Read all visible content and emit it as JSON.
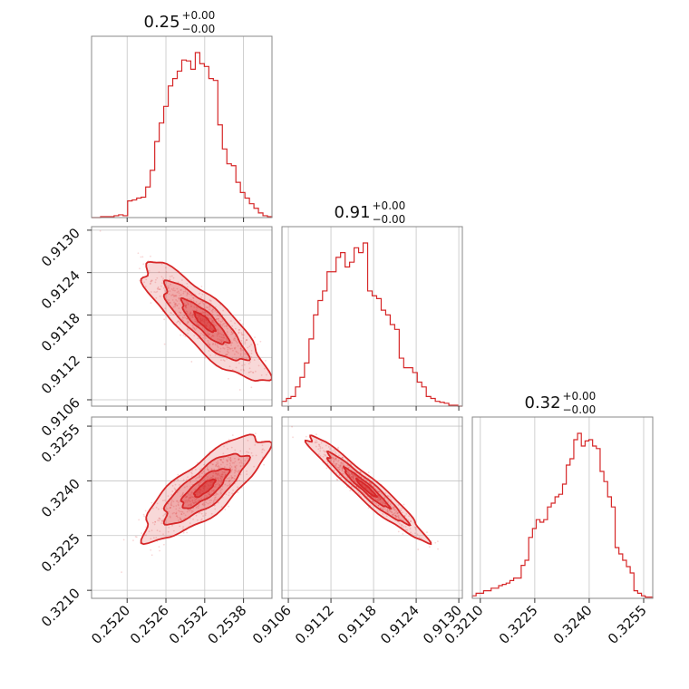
{
  "chart_data": {
    "type": "corner",
    "color": "#d62728",
    "params": [
      {
        "title_value": "0.25",
        "title_plus": "+0.00",
        "title_minus": "−0.00",
        "range": [
          0.25145,
          0.25424
        ],
        "ticks": [
          "0.2520",
          "0.2526",
          "0.2532",
          "0.2538"
        ]
      },
      {
        "title_value": "0.91",
        "title_plus": "+0.00",
        "title_minus": "−0.00",
        "range": [
          0.91051,
          0.91305
        ],
        "ticks": [
          "0.9106",
          "0.9112",
          "0.9118",
          "0.9124",
          "0.9130"
        ]
      },
      {
        "title_value": "0.32",
        "title_plus": "+0.00",
        "title_minus": "−0.00",
        "range": [
          0.32078,
          0.32575
        ],
        "ticks": [
          "0.3210",
          "0.3225",
          "0.3240",
          "0.3255"
        ]
      }
    ],
    "histograms": [
      {
        "param": 0,
        "bins_range": [
          0.25145,
          0.25424
        ],
        "counts": [
          0,
          0,
          1,
          1,
          1,
          2,
          3,
          2,
          18,
          19,
          21,
          22,
          33,
          51,
          82,
          102,
          120,
          142,
          150,
          158,
          170,
          169,
          160,
          178,
          166,
          163,
          150,
          148,
          100,
          74,
          58,
          56,
          38,
          27,
          21,
          15,
          10,
          5,
          2,
          1
        ]
      },
      {
        "param": 1,
        "bins_range": [
          0.91051,
          0.91305
        ],
        "counts": [
          5,
          8,
          10,
          20,
          30,
          45,
          70,
          95,
          110,
          120,
          140,
          140,
          155,
          160,
          145,
          150,
          165,
          160,
          170,
          120,
          115,
          112,
          100,
          95,
          85,
          80,
          50,
          40,
          40,
          35,
          25,
          20,
          10,
          8,
          5,
          4,
          3,
          1,
          1,
          0
        ]
      },
      {
        "param": 2,
        "bins_range": [
          0.32078,
          0.32575
        ],
        "counts": [
          2,
          4,
          4,
          6,
          6,
          8,
          8,
          10,
          11,
          12,
          14,
          16,
          16,
          26,
          30,
          48,
          55,
          62,
          60,
          62,
          72,
          75,
          80,
          82,
          90,
          105,
          110,
          125,
          130,
          120,
          124,
          125,
          120,
          118,
          100,
          92,
          80,
          72,
          40,
          35,
          30,
          25,
          20,
          6,
          4,
          2,
          1,
          1
        ]
      }
    ],
    "pairs": [
      {
        "x": 0,
        "y": 1,
        "mean": [
          0.2532,
          0.9117
        ],
        "sd": [
          0.0004,
          0.00035
        ],
        "rho": -0.85
      },
      {
        "x": 0,
        "y": 2,
        "mean": [
          0.2532,
          0.3238
        ],
        "sd": [
          0.0004,
          0.0006
        ],
        "rho": 0.8
      },
      {
        "x": 1,
        "y": 2,
        "mean": [
          0.9117,
          0.3238
        ],
        "sd": [
          0.00035,
          0.0006
        ],
        "rho": -0.96
      }
    ],
    "grid": true
  }
}
